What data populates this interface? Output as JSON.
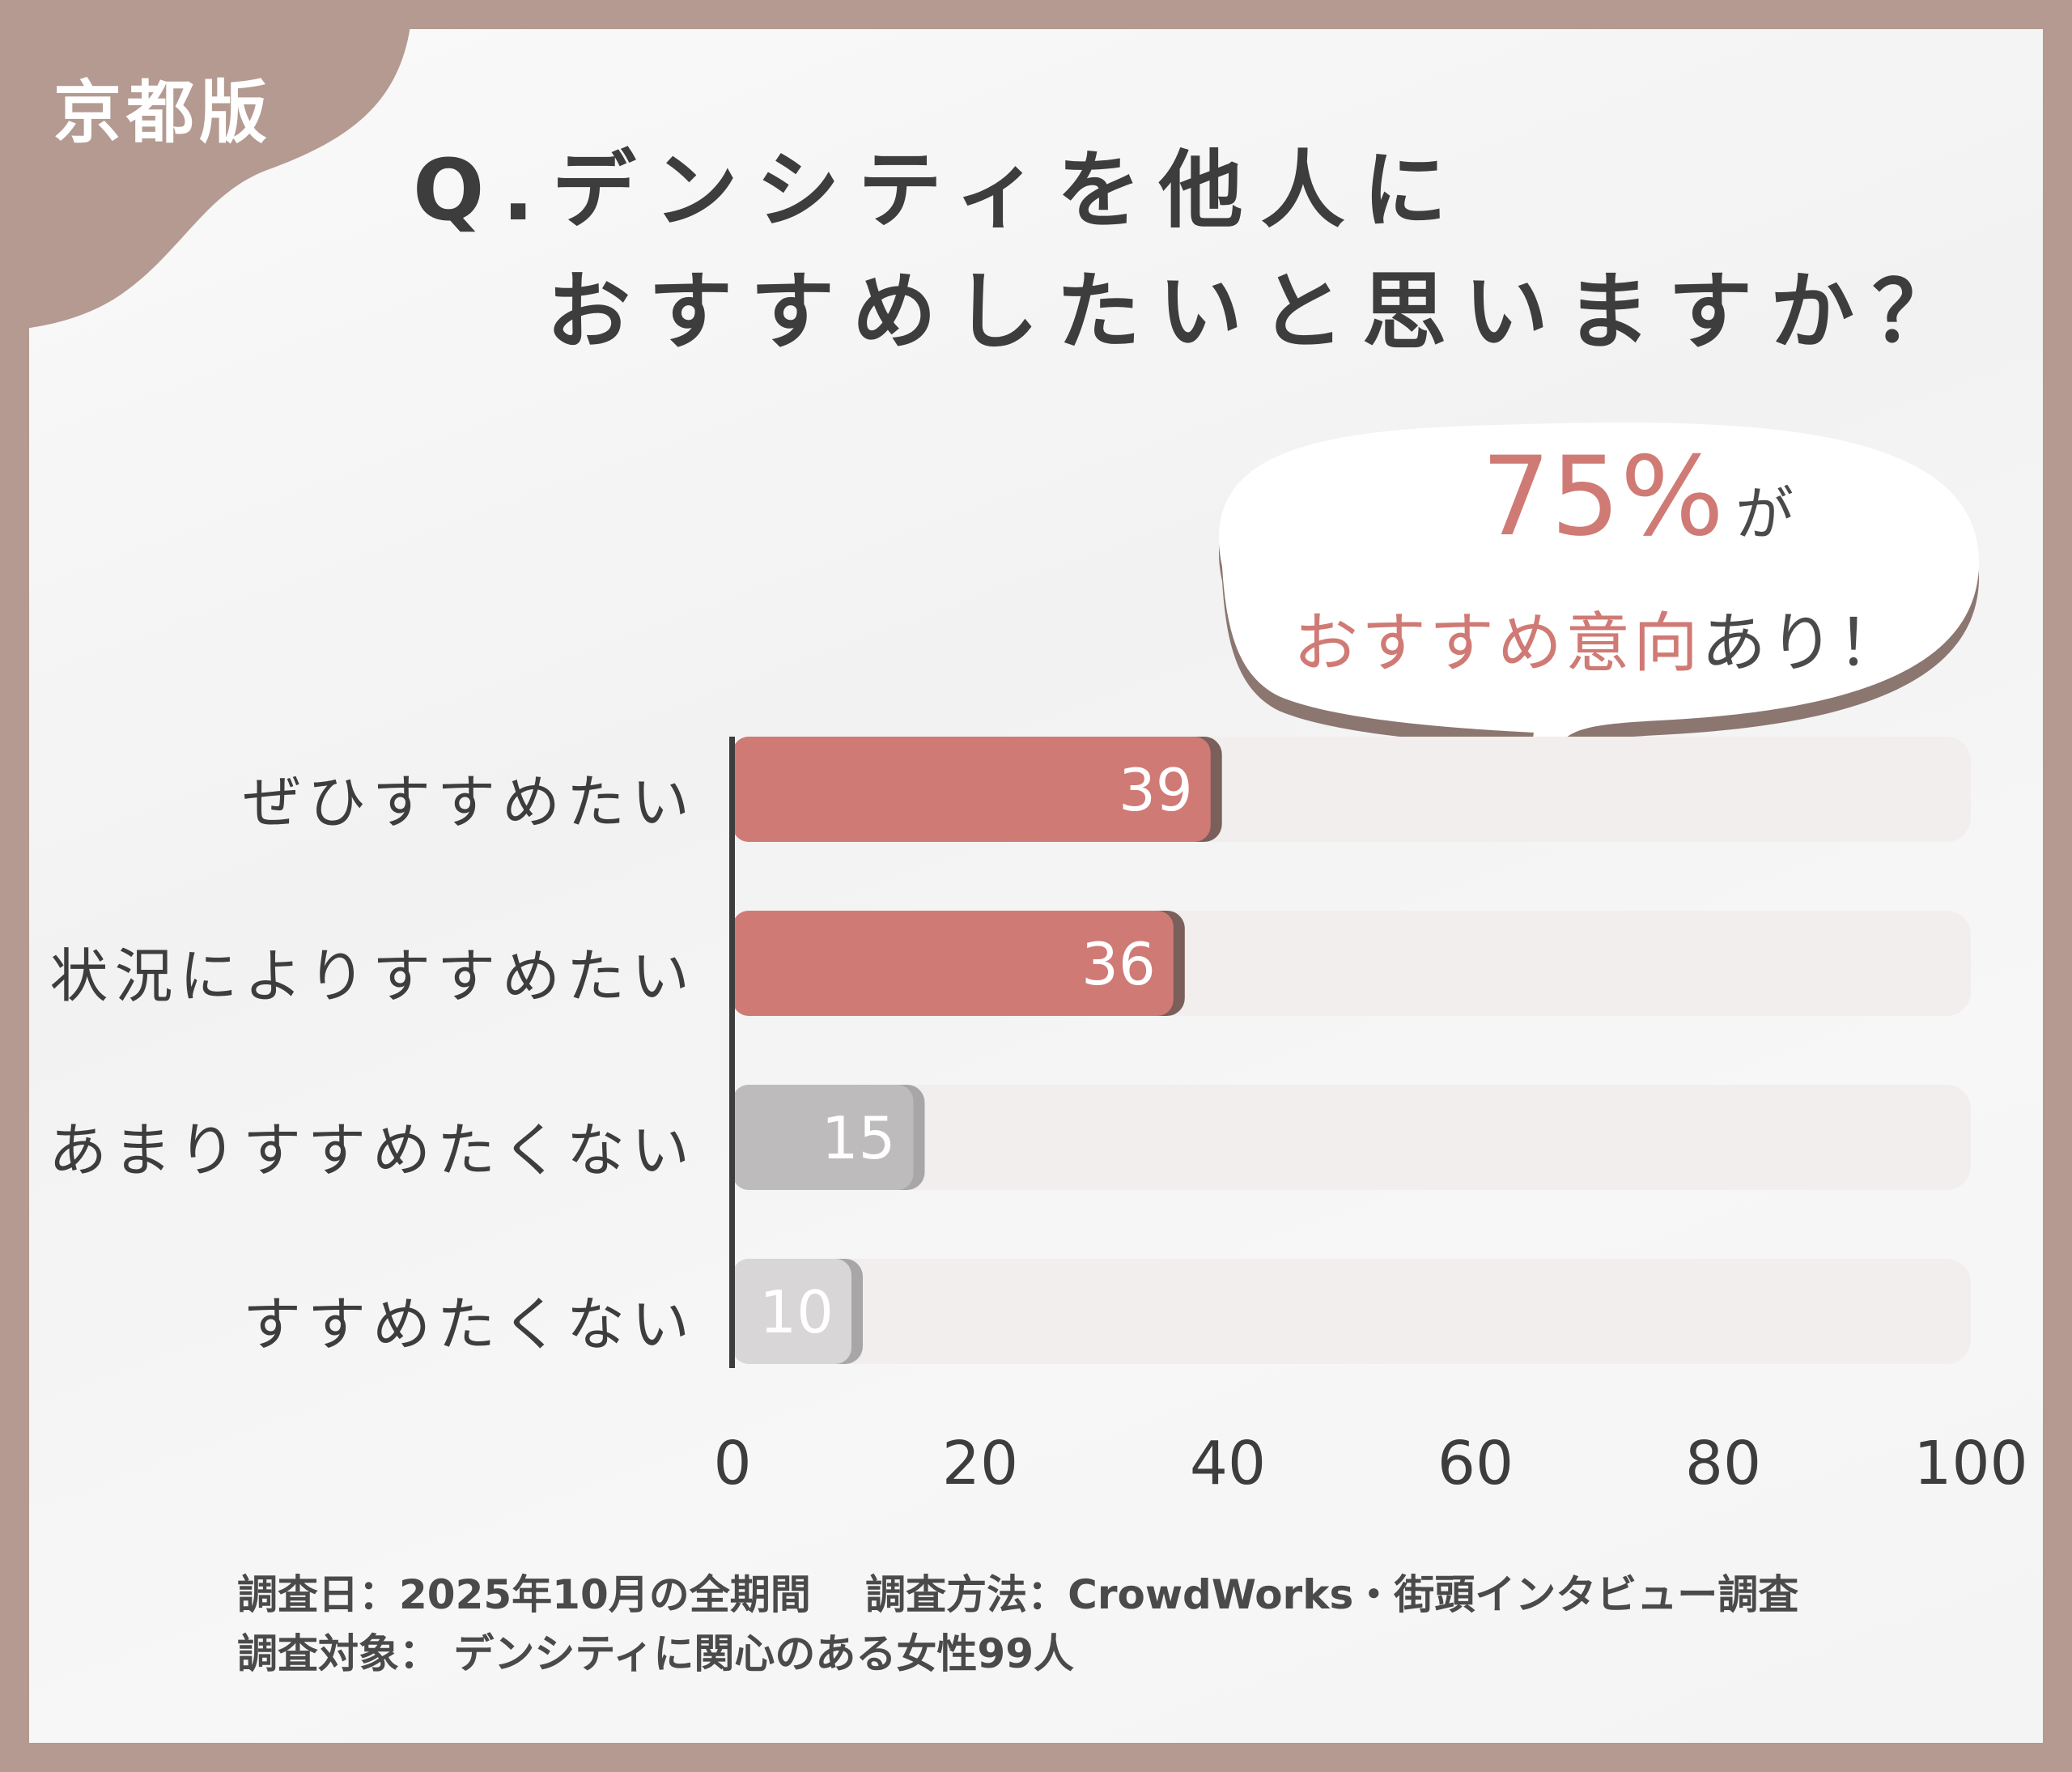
{
  "edition_label": "京都版",
  "title": {
    "line1": "Q.デンシティを他人に",
    "line2": "おすすめしたいと思いますか？"
  },
  "callout": {
    "percent": "75%",
    "suffix": "が",
    "line2_highlight": "おすすめ意向",
    "line2_rest": "あり！"
  },
  "chart_data": {
    "type": "bar",
    "orientation": "horizontal",
    "categories": [
      "ぜひすすめたい",
      "状況によりすすめたい",
      "あまりすすめたくない",
      "すすめたくない"
    ],
    "values": [
      39,
      36,
      15,
      10
    ],
    "xlim": [
      0,
      100
    ],
    "ticks": [
      "0",
      "20",
      "40",
      "60",
      "80",
      "100"
    ],
    "colors": [
      "#d07a75",
      "#d07a75",
      "#bdbbbb",
      "#d8d6d6"
    ],
    "track_color": "#f1eeed",
    "grid": false
  },
  "footer": {
    "line1": "調査日：2025年10月の全期間　 調査方法：CrowdWorks・街頭インタビュー調査",
    "line2": "調査対象： デンシティに関心のある女性99人"
  },
  "colors": {
    "frame": "#b49a90",
    "accent": "#d07a75"
  }
}
